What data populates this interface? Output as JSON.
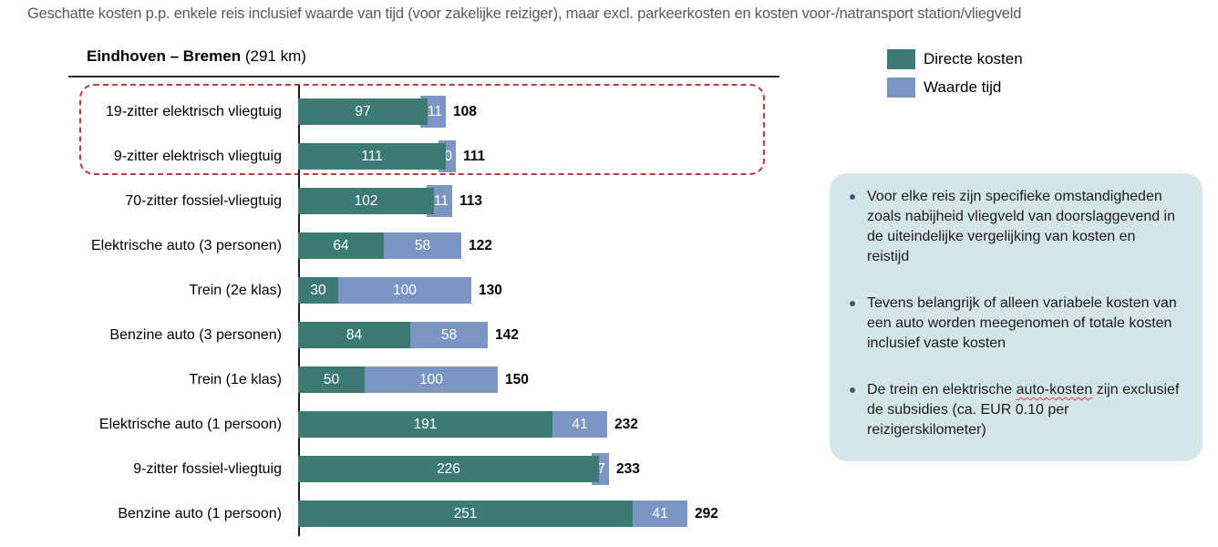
{
  "page_title": "Geschatte kosten p.p. enkele reis inclusief waarde van tijd (voor zakelijke reiziger), maar excl. parkeerkosten en kosten voor-/natransport station/vliegveld",
  "chart_header": {
    "route": "Eindhoven – Bremen",
    "distance": " (291 km)"
  },
  "legend": {
    "direct_label": "Directe kosten",
    "time_label": "Waarde tijd"
  },
  "colors": {
    "direct": "#3C7B73",
    "time": "#7B96C3",
    "highlight_border": "#C13A3A",
    "notes_background": "#D5E6E9",
    "note_bullet": "#3D5C7D"
  },
  "chart_data": {
    "type": "bar",
    "orientation": "horizontal",
    "stacked": true,
    "title": "Eindhoven – Bremen (291 km)",
    "categories": [
      "19-zitter elektrisch vliegtuig",
      "9-zitter elektrisch vliegtuig",
      "70-zitter fossiel-vliegtuig",
      "Elektrische auto (3 personen)",
      "Trein (2e klas)",
      "Benzine auto (3 personen)",
      "Trein (1e klas)",
      "Elektrische auto (1 persoon)",
      "9-zitter fossiel-vliegtuig",
      "Benzine auto (1 persoon)"
    ],
    "series": [
      {
        "name": "Directe kosten",
        "color": "#3C7B73",
        "values": [
          97,
          111,
          102,
          64,
          30,
          84,
          50,
          191,
          226,
          251
        ]
      },
      {
        "name": "Waarde tijd",
        "color": "#7B96C3",
        "values": [
          11,
          0,
          11,
          58,
          100,
          58,
          100,
          41,
          7,
          41
        ]
      }
    ],
    "totals": [
      108,
      111,
      113,
      122,
      130,
      142,
      150,
      232,
      233,
      292
    ],
    "xlim": [
      0,
      292
    ],
    "grid": false,
    "legend_position": "top-right",
    "highlighted_categories": [
      "19-zitter elektrisch vliegtuig",
      "9-zitter elektrisch vliegtuig"
    ]
  },
  "notes": {
    "bullets": [
      {
        "before": "Voor elke reis zijn specifieke omstandigheden zoals nabijheid vliegveld van doorslaggevend in de uiteindelijke vergelijking van kosten en reistijd",
        "wavy": "",
        "after": ""
      },
      {
        "before": "Tevens belangrijk of alleen variabele kosten van een auto worden meegenomen of totale kosten inclusief vaste kosten",
        "wavy": "",
        "after": ""
      },
      {
        "before": "De trein en elektrische ",
        "wavy": "auto-kosten",
        "after": " zijn exclusief de subsidies (ca. EUR 0.10 per reizigerskilometer)"
      }
    ]
  }
}
